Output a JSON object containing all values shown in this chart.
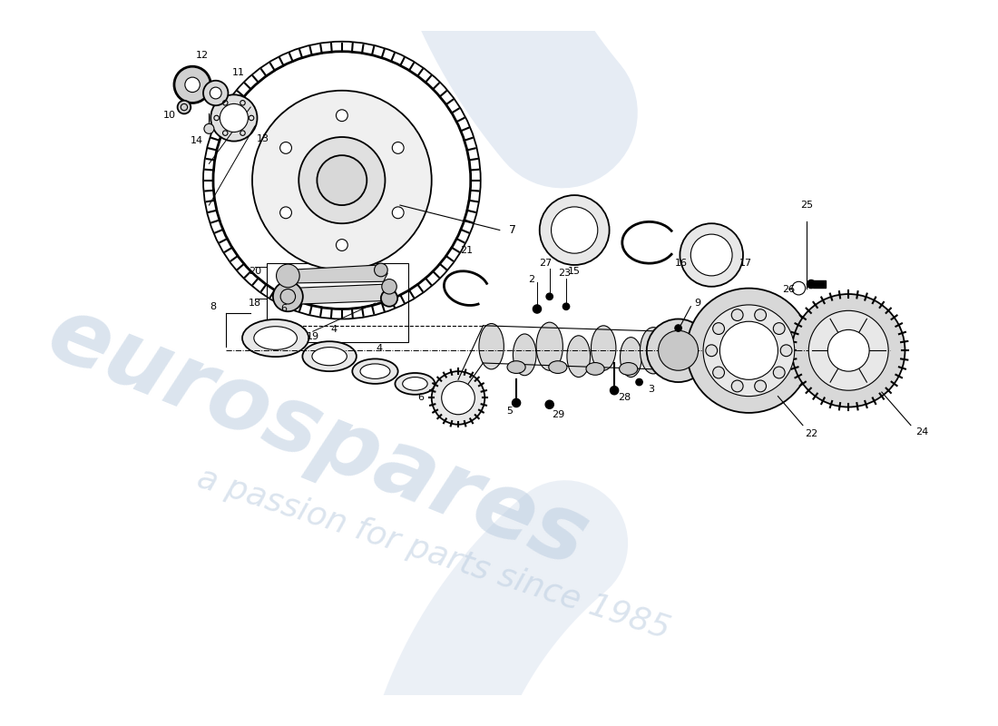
{
  "bg": "#ffffff",
  "lc": "#000000",
  "fig_w": 11.0,
  "fig_h": 8.0,
  "dpi": 100,
  "wm_text1": "eurospares",
  "wm_text2": "a passion for parts since 1985"
}
